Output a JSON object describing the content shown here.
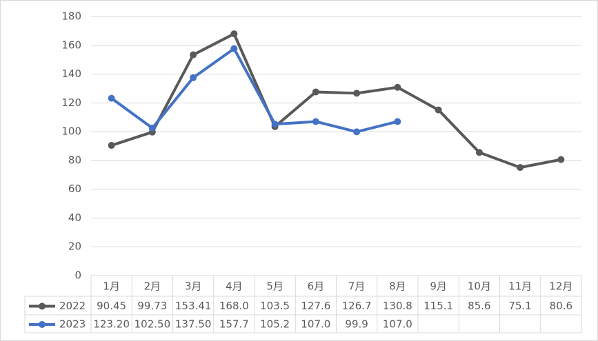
{
  "chart_data": {
    "type": "line",
    "categories": [
      "1月",
      "2月",
      "3月",
      "4月",
      "5月",
      "6月",
      "7月",
      "8月",
      "9月",
      "10月",
      "11月",
      "12月"
    ],
    "series": [
      {
        "name": "2022",
        "color": "#595959",
        "values": [
          90.45,
          99.73,
          153.41,
          168.0,
          103.5,
          127.6,
          126.7,
          130.8,
          115.1,
          85.6,
          75.1,
          80.6
        ],
        "value_labels": [
          "90.45",
          "99.73",
          "153.41",
          "168.0",
          "103.5",
          "127.6",
          "126.7",
          "130.8",
          "115.1",
          "85.6",
          "75.1",
          "80.6"
        ]
      },
      {
        "name": "2023",
        "color": "#4472c4",
        "values": [
          123.2,
          102.5,
          137.5,
          157.7,
          105.2,
          107.0,
          99.9,
          107.0,
          null,
          null,
          null,
          null
        ],
        "value_labels": [
          "123.20",
          "102.50",
          "137.50",
          "157.7",
          "105.2",
          "107.0",
          "99.9",
          "107.0",
          null,
          null,
          null,
          null
        ]
      }
    ],
    "ylim": [
      0,
      180
    ],
    "yticks": [
      0,
      20,
      40,
      60,
      80,
      100,
      120,
      140,
      160,
      180
    ],
    "grid": true
  }
}
